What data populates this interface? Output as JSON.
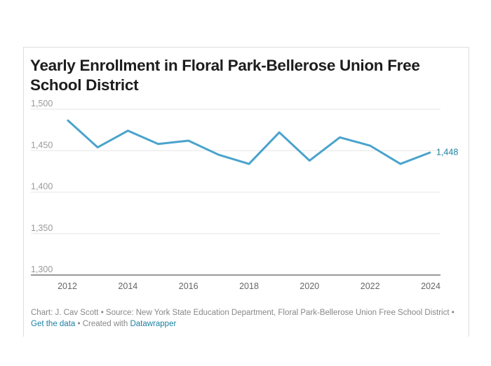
{
  "chart_data": {
    "type": "line",
    "title": "Yearly Enrollment in Floral Park-Bellerose Union Free School District",
    "x": [
      2012,
      2013,
      2014,
      2015,
      2016,
      2017,
      2018,
      2019,
      2020,
      2021,
      2022,
      2023,
      2024
    ],
    "values": [
      1487,
      1454,
      1474,
      1458,
      1462,
      1445,
      1434,
      1472,
      1438,
      1466,
      1456,
      1434,
      1448
    ],
    "xticks": [
      "2012",
      "2014",
      "2016",
      "2018",
      "2020",
      "2022",
      "2024"
    ],
    "yticks": [
      "1,300",
      "1,350",
      "1,400",
      "1,450",
      "1,500"
    ],
    "ylim": [
      1300,
      1500
    ],
    "xlim": [
      2012,
      2024
    ],
    "end_label": "1,448",
    "line_color": "#4aa3cc",
    "grid": true
  },
  "footer": {
    "credit": "Chart: J. Cav Scott • Source: New York State Education Department, Floral Park-Bellerose Union Free School District • ",
    "get_data": "Get the data",
    "sep": " • Created with ",
    "datawrapper": "Datawrapper"
  }
}
